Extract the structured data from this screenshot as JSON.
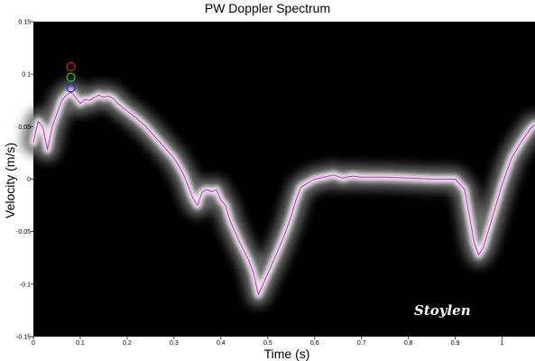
{
  "chart_data": {
    "type": "line",
    "title": "PW Doppler Spectrum",
    "xlabel": "Time (s)",
    "ylabel": "Velocity (m/s)",
    "xlim": [
      0,
      1.07
    ],
    "ylim": [
      -0.15,
      0.15
    ],
    "x_ticks": [
      "0",
      "0.1",
      "0.2",
      "0.3",
      "0.4",
      "0.5",
      "0.6",
      "0.7",
      "0.8",
      "0.9",
      "1"
    ],
    "y_ticks": [
      "0.15",
      "0.1",
      "0.05",
      "0",
      "-0.05",
      "-0.1",
      "-0.15"
    ],
    "grid": false,
    "background": "#000000",
    "signature_text": "Stoylen",
    "series": [
      {
        "color": "#e020e0",
        "x": [
          0.0,
          0.01,
          0.02,
          0.03,
          0.04,
          0.05,
          0.06,
          0.07,
          0.08,
          0.09,
          0.1,
          0.11,
          0.12,
          0.13,
          0.14,
          0.15,
          0.16,
          0.17,
          0.18,
          0.2,
          0.22,
          0.24,
          0.26,
          0.28,
          0.3,
          0.32,
          0.34,
          0.35,
          0.36,
          0.37,
          0.38,
          0.39,
          0.4,
          0.41,
          0.42,
          0.44,
          0.46,
          0.47,
          0.48,
          0.49,
          0.5,
          0.52,
          0.54,
          0.55,
          0.56,
          0.57,
          0.58,
          0.6,
          0.62,
          0.64,
          0.66,
          0.68,
          0.7,
          0.75,
          0.8,
          0.85,
          0.88,
          0.9,
          0.92,
          0.93,
          0.94,
          0.95,
          0.96,
          0.97,
          0.98,
          0.99,
          1.0,
          1.02,
          1.04,
          1.06,
          1.07
        ],
        "y": [
          0.035,
          0.055,
          0.05,
          0.028,
          0.05,
          0.062,
          0.075,
          0.08,
          0.083,
          0.078,
          0.072,
          0.076,
          0.075,
          0.078,
          0.08,
          0.078,
          0.079,
          0.077,
          0.072,
          0.065,
          0.058,
          0.05,
          0.04,
          0.03,
          0.02,
          0.005,
          -0.018,
          -0.025,
          -0.012,
          -0.01,
          -0.012,
          -0.01,
          -0.02,
          -0.025,
          -0.04,
          -0.06,
          -0.078,
          -0.09,
          -0.11,
          -0.1,
          -0.09,
          -0.07,
          -0.048,
          -0.035,
          -0.02,
          -0.008,
          -0.005,
          0.0,
          0.002,
          0.004,
          0.001,
          0.003,
          0.002,
          0.002,
          0.001,
          0.0,
          0.0,
          0.0,
          -0.01,
          -0.035,
          -0.06,
          -0.072,
          -0.065,
          -0.05,
          -0.035,
          -0.02,
          -0.005,
          0.02,
          0.035,
          0.048,
          0.052
        ]
      }
    ],
    "markers": [
      {
        "x": 0.08,
        "y": 0.107,
        "color": "#dd2020"
      },
      {
        "x": 0.08,
        "y": 0.097,
        "color": "#22bb22"
      },
      {
        "x": 0.08,
        "y": 0.087,
        "color": "#3322ff"
      }
    ]
  }
}
